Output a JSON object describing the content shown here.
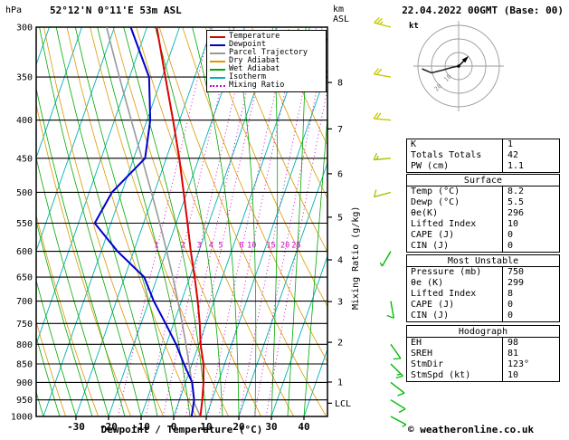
{
  "header": {
    "location": "52°12'N 0°11'E 53m ASL",
    "datetime": "22.04.2022 00GMT (Base: 00)"
  },
  "axis_labels": {
    "pressure_unit": "hPa",
    "altitude_unit_line1": "km",
    "altitude_unit_line2": "ASL",
    "bottom_axis": "Dewpoint / Temperature (°C)",
    "right_axis": "Mixing Ratio (g/kg)",
    "lcl": "LCL",
    "hodograph_unit": "kt"
  },
  "legend": {
    "items": [
      {
        "label": "Temperature",
        "color": "#dd0000",
        "style": "solid"
      },
      {
        "label": "Dewpoint",
        "color": "#0000cc",
        "style": "solid"
      },
      {
        "label": "Parcel Trajectory",
        "color": "#999999",
        "style": "solid"
      },
      {
        "label": "Dry Adiabat",
        "color": "#dd9900",
        "style": "solid"
      },
      {
        "label": "Wet Adiabat",
        "color": "#00aa00",
        "style": "solid"
      },
      {
        "label": "Isotherm",
        "color": "#00b2b2",
        "style": "solid"
      },
      {
        "label": "Mixing Ratio",
        "color": "#cc00cc",
        "style": "dotted"
      }
    ]
  },
  "panel": {
    "stats": {
      "rows": [
        {
          "label": "K",
          "value": "1"
        },
        {
          "label": "Totals Totals",
          "value": "42"
        },
        {
          "label": "PW (cm)",
          "value": "1.1"
        }
      ]
    },
    "surface": {
      "header": "Surface",
      "rows": [
        {
          "label": "Temp (°C)",
          "value": "8.2"
        },
        {
          "label": "Dewp (°C)",
          "value": "5.5"
        },
        {
          "label": "θe(K)",
          "value": "296"
        },
        {
          "label": "Lifted Index",
          "value": "10"
        },
        {
          "label": "CAPE (J)",
          "value": "0"
        },
        {
          "label": "CIN (J)",
          "value": "0"
        }
      ]
    },
    "most_unstable": {
      "header": "Most Unstable",
      "rows": [
        {
          "label": "Pressure (mb)",
          "value": "750"
        },
        {
          "label": "θe (K)",
          "value": "299"
        },
        {
          "label": "Lifted Index",
          "value": "8"
        },
        {
          "label": "CAPE (J)",
          "value": "0"
        },
        {
          "label": "CIN (J)",
          "value": "0"
        }
      ]
    },
    "hodograph": {
      "header": "Hodograph",
      "rows": [
        {
          "label": "EH",
          "value": "98"
        },
        {
          "label": "SREH",
          "value": "81"
        },
        {
          "label": "StmDir",
          "value": "123°"
        },
        {
          "label": "StmSpd (kt)",
          "value": "10"
        }
      ]
    }
  },
  "footer": {
    "copyright": "© weatheronline.co.uk"
  },
  "colors": {
    "temperature": "#dd0000",
    "dewpoint": "#0000cc",
    "parcel": "#999999",
    "dry_adiabat": "#dd9900",
    "wet_adiabat": "#00aa00",
    "isotherm": "#00b2b2",
    "mixing_ratio": "#cc00cc",
    "grid": "#000000",
    "barb_low": "#00bb00",
    "barb_high": "#c8c800"
  },
  "chart_data": {
    "type": "line",
    "subtype": "skew-t-log-p-sounding",
    "title": "52°12'N 0°11'E 53m ASL",
    "xlabel": "Dewpoint / Temperature (°C)",
    "ylabel": "hPa",
    "pressure_ticks_hPa": [
      300,
      350,
      400,
      450,
      500,
      550,
      600,
      650,
      700,
      750,
      800,
      850,
      900,
      950,
      1000
    ],
    "temp_ticks_C": [
      -30,
      -20,
      -10,
      0,
      10,
      20,
      30,
      40
    ],
    "altitude_km_ticks": [
      {
        "km": 8,
        "p": 356
      },
      {
        "km": 7,
        "p": 411
      },
      {
        "km": 6,
        "p": 472
      },
      {
        "km": 5,
        "p": 540
      },
      {
        "km": 4,
        "p": 616
      },
      {
        "km": 3,
        "p": 701
      },
      {
        "km": 2,
        "p": 795
      },
      {
        "km": 1,
        "p": 899
      }
    ],
    "mixing_ratio_labels_gkg": [
      1,
      2,
      3,
      4,
      5,
      8,
      10,
      15,
      20,
      25
    ],
    "lcl_hPa": 960,
    "parcel_surface": {
      "t": 8.2,
      "td": 5.5,
      "lcl_hPa": 960
    },
    "sounding": [
      {
        "p": 1000,
        "t": 8.2,
        "td": 5.5
      },
      {
        "p": 950,
        "t": 7.0,
        "td": 4.5
      },
      {
        "p": 900,
        "t": 5.5,
        "td": 2.0
      },
      {
        "p": 850,
        "t": 3.5,
        "td": -2.5
      },
      {
        "p": 800,
        "t": 0.5,
        "td": -7.0
      },
      {
        "p": 750,
        "t": -2.0,
        "td": -12.5
      },
      {
        "p": 700,
        "t": -5.0,
        "td": -18.5
      },
      {
        "p": 650,
        "t": -8.5,
        "td": -24.0
      },
      {
        "p": 600,
        "t": -12.5,
        "td": -35.0
      },
      {
        "p": 550,
        "t": -16.5,
        "td": -45.0
      },
      {
        "p": 500,
        "t": -21.0,
        "td": -43.0
      },
      {
        "p": 450,
        "t": -26.0,
        "td": -36.5
      },
      {
        "p": 400,
        "t": -32.0,
        "td": -39.0
      },
      {
        "p": 350,
        "t": -39.0,
        "td": -44.0
      },
      {
        "p": 300,
        "t": -47.0,
        "td": -55.0
      }
    ],
    "wind_barbs": [
      {
        "p": 300,
        "spd_kt": 25,
        "dir_deg": 285,
        "color": "#c8c800"
      },
      {
        "p": 350,
        "spd_kt": 20,
        "dir_deg": 280,
        "color": "#c8c800"
      },
      {
        "p": 400,
        "spd_kt": 20,
        "dir_deg": 275,
        "color": "#c8c800"
      },
      {
        "p": 450,
        "spd_kt": 15,
        "dir_deg": 265,
        "color": "#9ec800"
      },
      {
        "p": 500,
        "spd_kt": 10,
        "dir_deg": 255,
        "color": "#9ec800"
      },
      {
        "p": 600,
        "spd_kt": 5,
        "dir_deg": 210,
        "color": "#00bb00"
      },
      {
        "p": 700,
        "spd_kt": 10,
        "dir_deg": 170,
        "color": "#00bb00"
      },
      {
        "p": 800,
        "spd_kt": 10,
        "dir_deg": 145,
        "color": "#00bb00"
      },
      {
        "p": 850,
        "spd_kt": 15,
        "dir_deg": 135,
        "color": "#00bb00"
      },
      {
        "p": 900,
        "spd_kt": 10,
        "dir_deg": 128,
        "color": "#00bb00"
      },
      {
        "p": 950,
        "spd_kt": 10,
        "dir_deg": 122,
        "color": "#00bb00"
      },
      {
        "p": 1000,
        "spd_kt": 5,
        "dir_deg": 118,
        "color": "#00bb00"
      }
    ],
    "hodograph_rings_kt": [
      10,
      20,
      30
    ],
    "hodograph_ring_labels": [
      "10",
      "20"
    ],
    "hodograph_trace_uv_kt": [
      [
        0,
        0
      ],
      [
        -5,
        -1
      ],
      [
        -12,
        -3
      ],
      [
        -20,
        -5
      ],
      [
        -27,
        -2
      ]
    ],
    "storm_vector_uv_kt": [
      6,
      6
    ]
  }
}
